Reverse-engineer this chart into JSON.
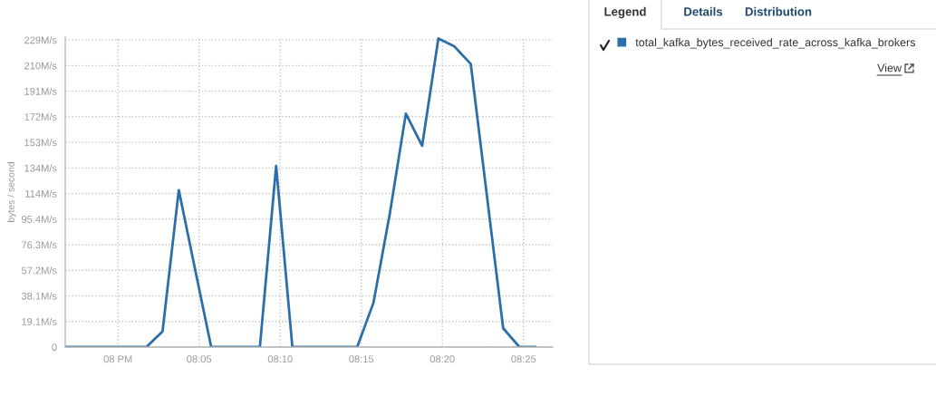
{
  "chart_data": {
    "type": "line",
    "ylabel": "bytes / second",
    "x": [
      7.9458,
      7.9625,
      7.9792,
      7.9958,
      8.0125,
      8.0292,
      8.0458,
      8.0625,
      8.0792,
      8.0958,
      8.1125,
      8.1292,
      8.1458,
      8.1625,
      8.1792,
      8.1958,
      8.2125,
      8.2292,
      8.2458,
      8.2625,
      8.2792,
      8.2958,
      8.3125,
      8.3292,
      8.3458,
      8.3625,
      8.3792,
      8.3958,
      8.4125,
      8.4292
    ],
    "series": [
      {
        "name": "total_kafka_bytes_received_rate_across_kafka_brokers",
        "color": "#2c6fa8",
        "values": [
          0,
          0,
          0,
          0,
          0,
          0,
          11.7,
          117,
          58,
          0,
          0,
          0,
          0,
          135,
          0,
          0,
          0,
          0,
          0,
          33,
          99,
          174,
          150,
          230,
          224,
          211,
          112,
          14,
          0,
          0
        ]
      }
    ],
    "xlim": [
      7.9458,
      8.4467
    ],
    "xticks": [
      {
        "value": 8,
        "label": "08 PM"
      },
      {
        "value": 8.0833,
        "label": "08:05"
      },
      {
        "value": 8.1667,
        "label": "08:10"
      },
      {
        "value": 8.25,
        "label": "08:15"
      },
      {
        "value": 8.3333,
        "label": "08:20"
      },
      {
        "value": 8.4167,
        "label": "08:25"
      }
    ],
    "ylim": [
      0,
      231
    ],
    "yticks": [
      0,
      {
        "value": 19.07,
        "label": "19.1M/s"
      },
      {
        "value": 38.15,
        "label": "38.1M/s"
      },
      {
        "value": 57.22,
        "label": "57.2M/s"
      },
      {
        "value": 76.29,
        "label": "76.3M/s"
      },
      {
        "value": 95.37,
        "label": "95.4M/s"
      },
      {
        "value": 114.4,
        "label": "114M/s"
      },
      {
        "value": 133.5,
        "label": "134M/s"
      },
      {
        "value": 152.6,
        "label": "153M/s"
      },
      {
        "value": 171.7,
        "label": "172M/s"
      },
      {
        "value": 190.7,
        "label": "191M/s"
      },
      {
        "value": 209.8,
        "label": "210M/s"
      },
      {
        "value": 228.9,
        "label": "229M/s"
      }
    ],
    "grid": true,
    "legend": "right",
    "line_style": "solid",
    "annotations": [
      "Legend",
      "Details",
      "Distribution",
      "View"
    ]
  }
}
